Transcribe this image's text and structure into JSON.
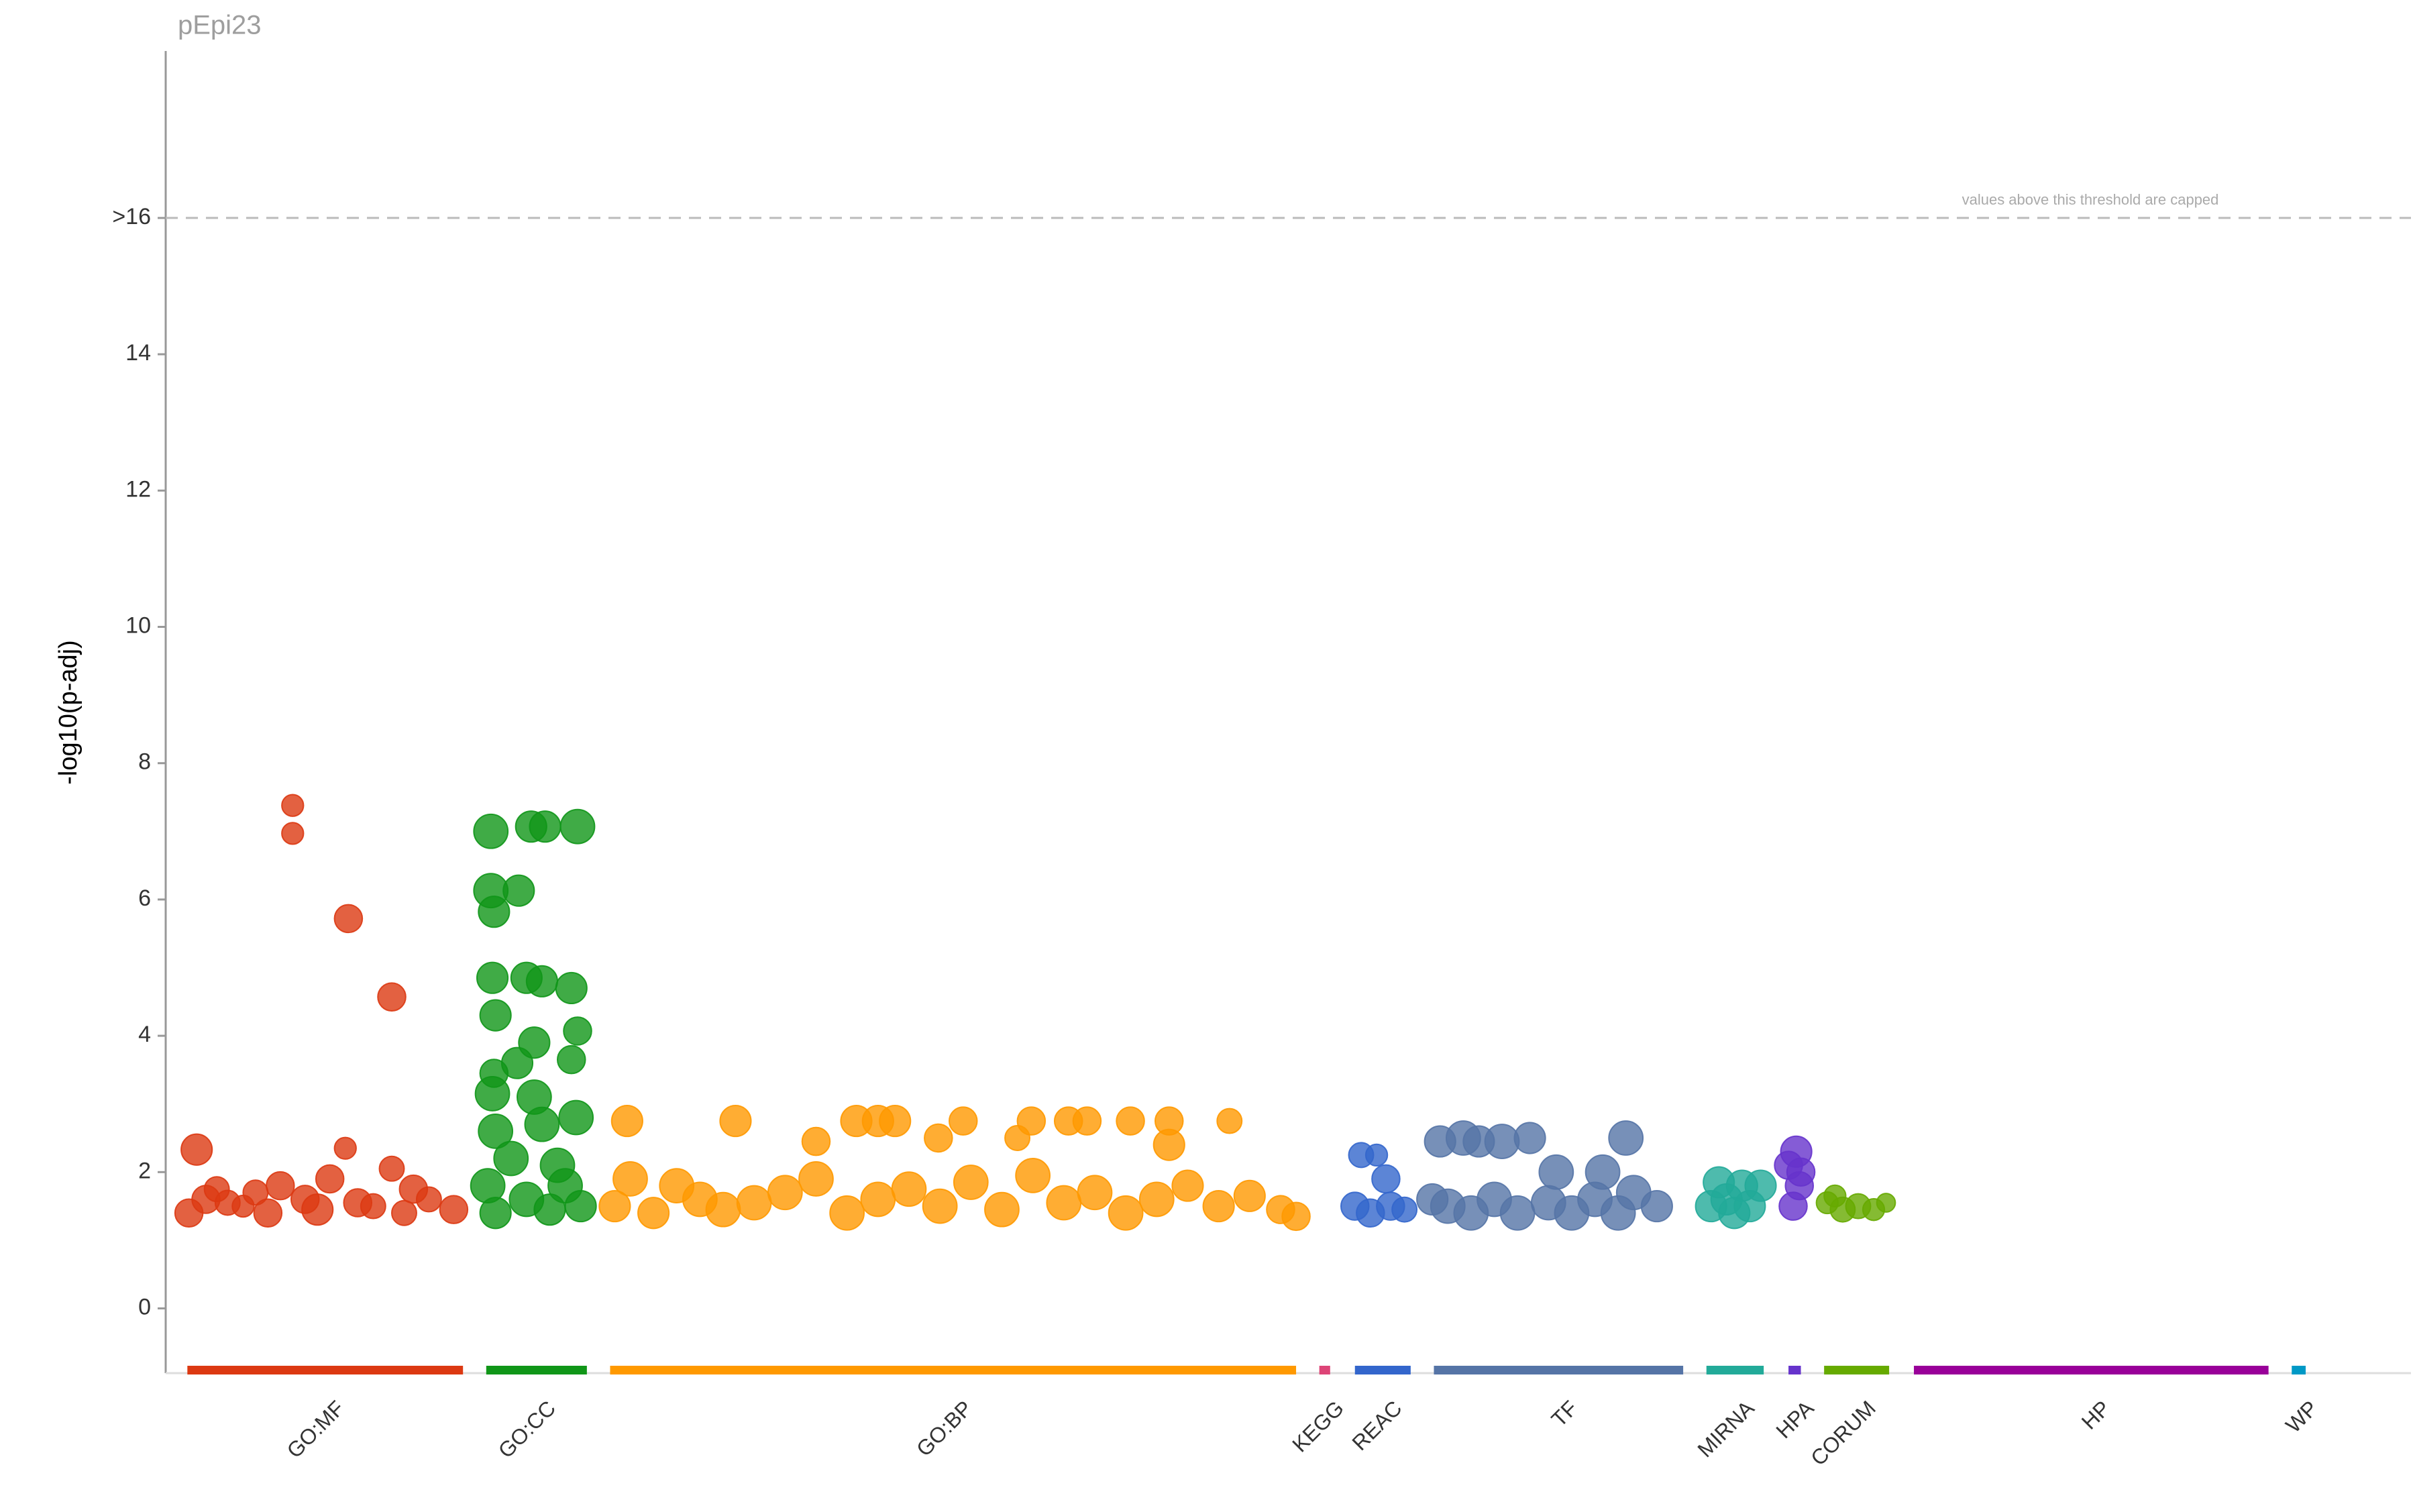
{
  "chart_data": {
    "type": "scatter",
    "title": "pEpi23",
    "y_label": "-log10(p-adj)",
    "annotation": "values above this threshold are capped",
    "threshold": 16,
    "xlim": [
      0,
      1450
    ],
    "ylim": [
      -0.95,
      18.45
    ],
    "yticks": [
      0,
      2,
      4,
      6,
      8,
      10,
      12,
      14,
      {
        "value": 16,
        "label": ">16"
      }
    ],
    "series": [
      {
        "name": "GO:MF",
        "color": "#dc3912",
        "range": [
          14,
          192
        ],
        "x": [
          15,
          20,
          26,
          33,
          40,
          50,
          58,
          66,
          74,
          82,
          82,
          90,
          98,
          106,
          116,
          118,
          124,
          134,
          146,
          146,
          154,
          160,
          170,
          186
        ],
        "values": [
          1.4,
          2.33,
          1.6,
          1.75,
          1.55,
          1.5,
          1.7,
          1.4,
          1.8,
          7.38,
          6.97,
          1.6,
          1.45,
          1.9,
          2.35,
          5.72,
          1.55,
          1.5,
          4.57,
          2.05,
          1.4,
          1.75,
          1.6,
          1.45
        ],
        "sizes": [
          9,
          10,
          9,
          8,
          8,
          7,
          8,
          9,
          9,
          7,
          7,
          9,
          10,
          9,
          7,
          9,
          9,
          8,
          9,
          8,
          8,
          9,
          8,
          9
        ]
      },
      {
        "name": "GO:CC",
        "color": "#109618",
        "range": [
          207,
          272
        ],
        "x": [
          210,
          236,
          245,
          266,
          210,
          228,
          212,
          211,
          233,
          243,
          262,
          213,
          266,
          227,
          238,
          262,
          212,
          211,
          238,
          265,
          213,
          243,
          223,
          253,
          208,
          233,
          258,
          213,
          248,
          268
        ],
        "values": [
          7.0,
          7.07,
          7.07,
          7.07,
          6.13,
          6.13,
          5.82,
          4.85,
          4.85,
          4.8,
          4.7,
          4.3,
          4.07,
          3.6,
          3.9,
          3.65,
          3.45,
          3.15,
          3.1,
          2.8,
          2.6,
          2.7,
          2.2,
          2.1,
          1.8,
          1.6,
          1.8,
          1.4,
          1.45,
          1.5
        ],
        "sizes": [
          11,
          10,
          10,
          11,
          11,
          10,
          10,
          10,
          10,
          10,
          10,
          10,
          9,
          10,
          10,
          9,
          9,
          11,
          11,
          11,
          11,
          11,
          11,
          11,
          11,
          11,
          11,
          10,
          10,
          10
        ]
      },
      {
        "name": "GO:BP",
        "color": "#ff9900",
        "range": [
          287,
          730
        ],
        "x": [
          298,
          368,
          446,
          460,
          471,
          515,
          559,
          583,
          595,
          623,
          648,
          687,
          420,
          499,
          550,
          648,
          290,
          300,
          315,
          330,
          345,
          360,
          380,
          400,
          420,
          440,
          460,
          480,
          500,
          520,
          540,
          560,
          580,
          600,
          620,
          640,
          660,
          680,
          700,
          720,
          730
        ],
        "values": [
          2.75,
          2.75,
          2.75,
          2.75,
          2.75,
          2.75,
          2.75,
          2.75,
          2.75,
          2.75,
          2.75,
          2.75,
          2.45,
          2.5,
          2.5,
          2.4,
          1.5,
          1.9,
          1.4,
          1.8,
          1.6,
          1.45,
          1.55,
          1.7,
          1.9,
          1.4,
          1.6,
          1.75,
          1.5,
          1.85,
          1.45,
          1.95,
          1.55,
          1.7,
          1.4,
          1.6,
          1.8,
          1.5,
          1.65,
          1.45,
          1.35
        ],
        "sizes": [
          10,
          10,
          10,
          10,
          10,
          9,
          9,
          9,
          9,
          9,
          9,
          8,
          9,
          9,
          8,
          10,
          10,
          11,
          10,
          11,
          11,
          11,
          11,
          11,
          11,
          11,
          11,
          11,
          11,
          11,
          11,
          11,
          11,
          11,
          11,
          11,
          10,
          10,
          10,
          9,
          9
        ]
      },
      {
        "name": "KEGG",
        "color": "#dd4477",
        "range": [
          745,
          752
        ],
        "x": [],
        "values": [],
        "sizes": []
      },
      {
        "name": "REAC",
        "color": "#3366cc",
        "range": [
          768,
          804
        ],
        "x": [
          772,
          782,
          788,
          768,
          778,
          791,
          800
        ],
        "values": [
          2.25,
          2.25,
          1.9,
          1.5,
          1.4,
          1.5,
          1.45
        ],
        "sizes": [
          8,
          7,
          9,
          9,
          9,
          9,
          8
        ]
      },
      {
        "name": "TF",
        "color": "#5574a6",
        "range": [
          819,
          980
        ],
        "x": [
          823,
          838,
          848,
          863,
          881,
          943,
          898,
          928,
          828,
          843,
          858,
          873,
          893,
          908,
          923,
          938,
          948,
          963,
          818
        ],
        "values": [
          2.45,
          2.5,
          2.45,
          2.45,
          2.5,
          2.5,
          2.0,
          2.0,
          1.5,
          1.4,
          1.6,
          1.4,
          1.55,
          1.4,
          1.6,
          1.4,
          1.7,
          1.5,
          1.6
        ],
        "sizes": [
          10,
          11,
          10,
          11,
          10,
          11,
          11,
          11,
          11,
          11,
          11,
          11,
          11,
          11,
          11,
          11,
          11,
          10,
          10
        ]
      },
      {
        "name": "MIRNA",
        "color": "#22aa99",
        "range": [
          995,
          1032
        ],
        "x": [
          998,
          1003,
          1013,
          1018,
          1023,
          1030,
          1008
        ],
        "values": [
          1.5,
          1.85,
          1.4,
          1.8,
          1.5,
          1.8,
          1.6
        ],
        "sizes": [
          10,
          10,
          10,
          10,
          10,
          10,
          10
        ]
      },
      {
        "name": "HPA",
        "color": "#6633cc",
        "range": [
          1048,
          1056
        ],
        "x": [
          1053,
          1048,
          1055,
          1051,
          1056
        ],
        "values": [
          2.3,
          2.1,
          1.8,
          1.5,
          2.0
        ],
        "sizes": [
          10,
          9,
          9,
          9,
          9
        ]
      },
      {
        "name": "CORUM",
        "color": "#66aa00",
        "range": [
          1071,
          1113
        ],
        "x": [
          1078,
          1083,
          1093,
          1103,
          1111,
          1073
        ],
        "values": [
          1.65,
          1.45,
          1.5,
          1.45,
          1.55,
          1.55
        ],
        "sizes": [
          7,
          8,
          8,
          7,
          6,
          7
        ]
      },
      {
        "name": "HP",
        "color": "#990099",
        "range": [
          1129,
          1358
        ],
        "x": [],
        "values": [],
        "sizes": []
      },
      {
        "name": "WP",
        "color": "#0099c6",
        "range": [
          1373,
          1382
        ],
        "x": [],
        "values": [],
        "sizes": []
      }
    ]
  }
}
